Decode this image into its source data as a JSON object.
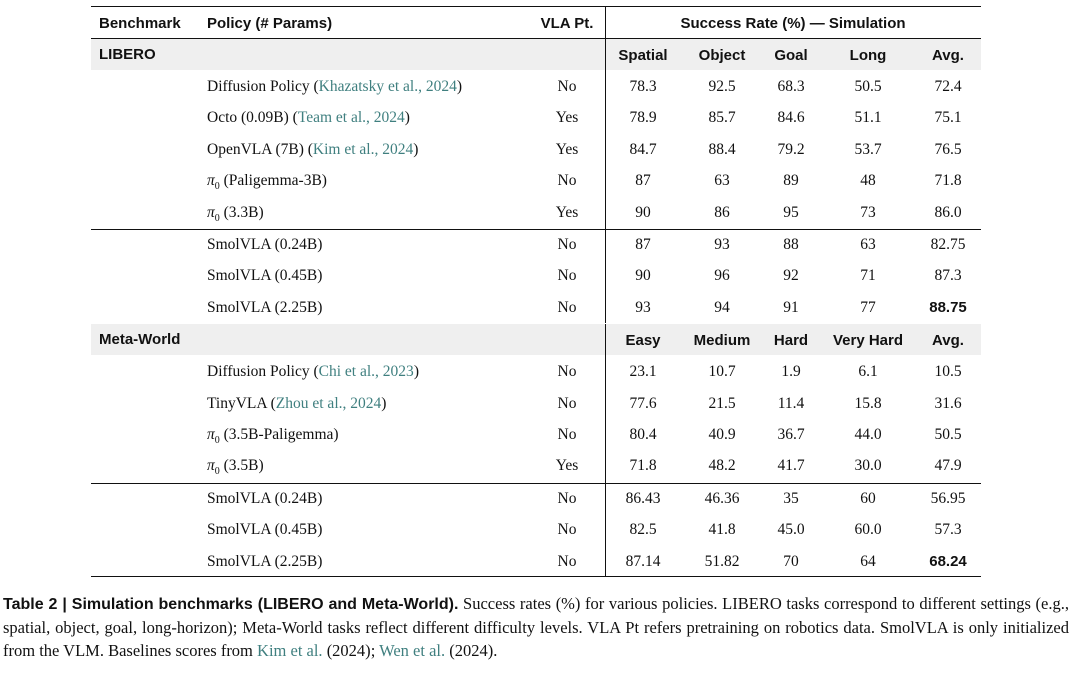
{
  "table": {
    "headers": {
      "benchmark": "Benchmark",
      "policy": "Policy (# Params)",
      "vla_pt": "VLA Pt.",
      "success": "Success Rate (%) — Simulation"
    },
    "sections": [
      {
        "name": "LIBERO",
        "columns": [
          "Spatial",
          "Object",
          "Goal",
          "Long",
          "Avg."
        ],
        "baselines": [
          {
            "policy": "Diffusion Policy (",
            "cite": "Khazatsky et al., 2024",
            "close": ")",
            "pt": "No",
            "values": [
              "78.3",
              "92.5",
              "68.3",
              "50.5",
              "72.4"
            ]
          },
          {
            "policy": "Octo (0.09B) (",
            "cite": "Team et al., 2024",
            "close": ")",
            "pt": "Yes",
            "values": [
              "78.9",
              "85.7",
              "84.6",
              "51.1",
              "75.1"
            ]
          },
          {
            "policy": "OpenVLA (7B) (",
            "cite": "Kim et al., 2024",
            "close": ")",
            "pt": "Yes",
            "values": [
              "84.7",
              "88.4",
              "79.2",
              "53.7",
              "76.5"
            ]
          },
          {
            "policy": "π",
            "sub": "0",
            "rest": " (Paligemma-3B)",
            "pt": "No",
            "values": [
              "87",
              "63",
              "89",
              "48",
              "71.8"
            ]
          },
          {
            "policy": "π",
            "sub": "0",
            "rest": " (3.3B)",
            "pt": "Yes",
            "values": [
              "90",
              "86",
              "95",
              "73",
              "86.0"
            ]
          }
        ],
        "smolvla": [
          {
            "policy": "SmolVLA (0.24B)",
            "pt": "No",
            "values": [
              "87",
              "93",
              "88",
              "63",
              "82.75"
            ]
          },
          {
            "policy": "SmolVLA (0.45B)",
            "pt": "No",
            "values": [
              "90",
              "96",
              "92",
              "71",
              "87.3"
            ]
          },
          {
            "policy": "SmolVLA (2.25B)",
            "pt": "No",
            "values": [
              "93",
              "94",
              "91",
              "77",
              "88.75"
            ],
            "bold_avg": true
          }
        ]
      },
      {
        "name": "Meta-World",
        "columns": [
          "Easy",
          "Medium",
          "Hard",
          "Very Hard",
          "Avg."
        ],
        "baselines": [
          {
            "policy": "Diffusion Policy (",
            "cite": "Chi et al., 2023",
            "close": ")",
            "pt": "No",
            "values": [
              "23.1",
              "10.7",
              "1.9",
              "6.1",
              "10.5"
            ]
          },
          {
            "policy": "TinyVLA (",
            "cite": "Zhou et al., 2024",
            "close": ")",
            "pt": "No",
            "values": [
              "77.6",
              "21.5",
              "11.4",
              "15.8",
              "31.6"
            ]
          },
          {
            "policy": "π",
            "sub": "0",
            "rest": " (3.5B-Paligemma)",
            "pt": "No",
            "values": [
              "80.4",
              "40.9",
              "36.7",
              "44.0",
              "50.5"
            ]
          },
          {
            "policy": "π",
            "sub": "0",
            "rest": " (3.5B)",
            "pt": "Yes",
            "values": [
              "71.8",
              "48.2",
              "41.7",
              "30.0",
              "47.9"
            ]
          }
        ],
        "smolvla": [
          {
            "policy": "SmolVLA (0.24B)",
            "pt": "No",
            "values": [
              "86.43",
              "46.36",
              "35",
              "60",
              "56.95"
            ]
          },
          {
            "policy": "SmolVLA (0.45B)",
            "pt": "No",
            "values": [
              "82.5",
              "41.8",
              "45.0",
              "60.0",
              "57.3"
            ]
          },
          {
            "policy": "SmolVLA (2.25B)",
            "pt": "No",
            "values": [
              "87.14",
              "51.82",
              "70",
              "64",
              "68.24"
            ],
            "bold_avg": true
          }
        ]
      }
    ]
  },
  "caption": {
    "lead": "Table 2  |  Simulation benchmarks (LIBERO and Meta-World).",
    "text1": " Success rates (%) for various policies. LIBERO tasks correspond to different settings (e.g., spatial, object, goal, long-horizon); Meta-World tasks reflect different difficulty levels. VLA Pt refers pretraining on robotics data. SmolVLA is only initialized from the VLM. Baselines scores from ",
    "cite1": "Kim et al.",
    "cite1_year": " (2024)",
    "sep": "; ",
    "cite2": "Wen et al.",
    "cite2_year": " (2024)",
    "end": "."
  }
}
